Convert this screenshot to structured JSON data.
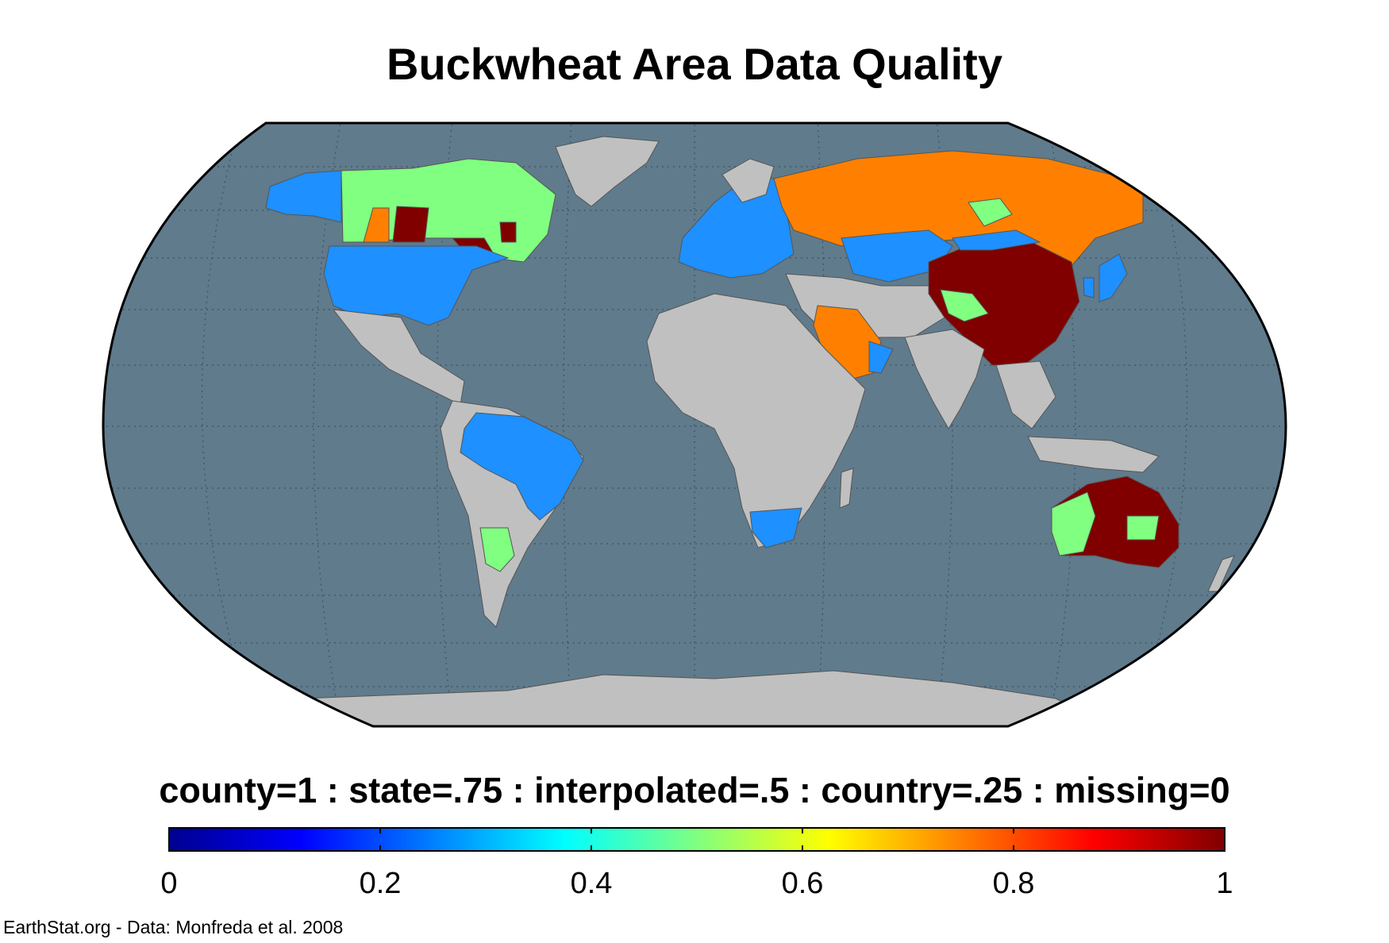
{
  "title": "Buckwheat Area Data Quality",
  "legend_caption": "county=1 : state=.75 : interpolated=.5 : country=.25 : missing=0",
  "colorbar": {
    "min": 0,
    "max": 1,
    "ticks": [
      0,
      0.2,
      0.4,
      0.6,
      0.8,
      1
    ],
    "tick_labels": [
      "0",
      "0.2",
      "0.4",
      "0.6",
      "0.8",
      "1"
    ],
    "colormap": "jet",
    "stops": [
      "#00008f",
      "#0000ff",
      "#0080ff",
      "#00ffff",
      "#80ff80",
      "#ffff00",
      "#ff8000",
      "#ff0000",
      "#800000"
    ]
  },
  "credit": "EarthStat.org - Data: Monfreda et al. 2008",
  "map": {
    "projection": "Robinson",
    "ocean_color": "#607b8c",
    "land_nodata_color": "#c0c0c0",
    "graticule": "dotted",
    "data_quality_by_region": [
      {
        "region": "United States",
        "value": 0.25,
        "color": "#1e90ff"
      },
      {
        "region": "Alaska",
        "value": 0.25,
        "color": "#1e90ff"
      },
      {
        "region": "Canada",
        "value": 0.5,
        "color": "#80ff80"
      },
      {
        "region": "Canada (state-level provinces)",
        "value": 1,
        "color": "#800000"
      },
      {
        "region": "Canada (Saskatchewan)",
        "value": 0.75,
        "color": "#ff8000"
      },
      {
        "region": "Brazil",
        "value": 0.25,
        "color": "#1e90ff"
      },
      {
        "region": "Argentina",
        "value": 0.5,
        "color": "#80ff80"
      },
      {
        "region": "Europe",
        "value": 0.25,
        "color": "#1e90ff"
      },
      {
        "region": "Russia",
        "value": 0.75,
        "color": "#ff8000"
      },
      {
        "region": "Kazakhstan",
        "value": 0.25,
        "color": "#1e90ff"
      },
      {
        "region": "China",
        "value": 1,
        "color": "#800000"
      },
      {
        "region": "Western China",
        "value": 0.5,
        "color": "#80ff80"
      },
      {
        "region": "Japan and Korea",
        "value": 0.25,
        "color": "#1e90ff"
      },
      {
        "region": "Saudi Arabia",
        "value": 0.75,
        "color": "#ff8000"
      },
      {
        "region": "Oman / UAE",
        "value": 0.25,
        "color": "#1e90ff"
      },
      {
        "region": "South Africa",
        "value": 0.25,
        "color": "#1e90ff"
      },
      {
        "region": "Australia",
        "value": 1,
        "color": "#800000"
      },
      {
        "region": "Western Australia",
        "value": 0.5,
        "color": "#80ff80"
      }
    ]
  }
}
